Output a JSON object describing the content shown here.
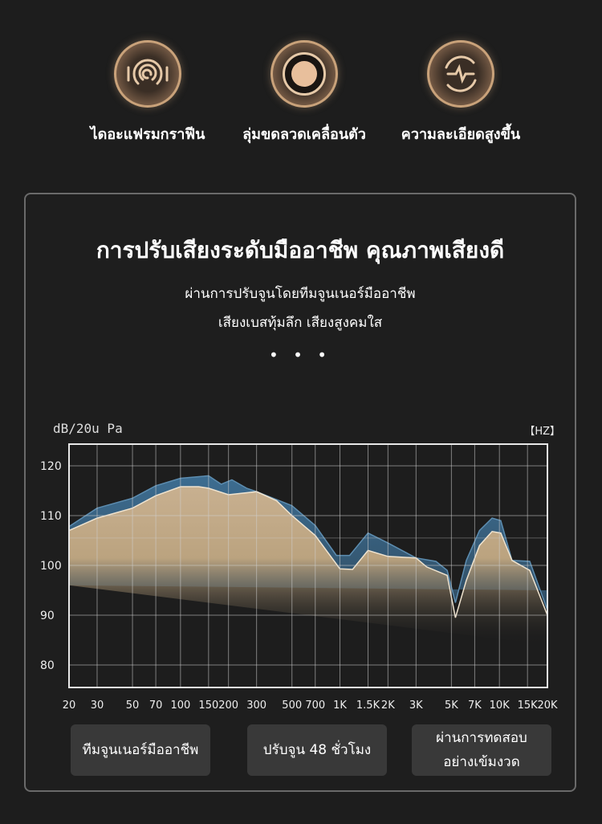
{
  "features": [
    {
      "icon": "graphene-diaphragm-icon",
      "label": "ไดอะแฟรมกราฟีน"
    },
    {
      "icon": "moving-coil-icon",
      "label": "ลุ่มขดลวดเคลื่อนตัว"
    },
    {
      "icon": "high-resolution-icon",
      "label": "ความละเอียดสูงขึ้น"
    }
  ],
  "panel": {
    "title": "การปรับเสียงระดับมืออาชีพ คุณภาพเสียงดี",
    "subtitle1": "ผ่านการปรับจูนโดยทีมจูนเนอร์มืออาชีพ",
    "subtitle2": "เสียงเบสทุ้มลึก เสียงสูงคมใส",
    "dots": "• • •",
    "buttons": [
      "ทีมจูนเนอร์มืออาชีพ",
      "ปรับจูน 48 ชั่วโมง",
      "ผ่านการทดสอบ",
      "อย่างเข้มงวด"
    ]
  },
  "chart_data": {
    "type": "area",
    "ylabel": "dB/20u Pa",
    "xlabel": "【HZ】",
    "xscale": "log",
    "xlim": [
      20,
      20000
    ],
    "ylim": [
      75,
      124
    ],
    "grid": true,
    "yticks": [
      120,
      110,
      100,
      90,
      80
    ],
    "xticks": [
      {
        "v": 20,
        "l": "20"
      },
      {
        "v": 30,
        "l": "30"
      },
      {
        "v": 50,
        "l": "50"
      },
      {
        "v": 70,
        "l": "70"
      },
      {
        "v": 100,
        "l": "100"
      },
      {
        "v": 150,
        "l": "150"
      },
      {
        "v": 200,
        "l": "200"
      },
      {
        "v": 300,
        "l": "300"
      },
      {
        "v": 500,
        "l": "500"
      },
      {
        "v": 700,
        "l": "700"
      },
      {
        "v": 1000,
        "l": "1K"
      },
      {
        "v": 1500,
        "l": "1.5K"
      },
      {
        "v": 2000,
        "l": "2K"
      },
      {
        "v": 3000,
        "l": "3K"
      },
      {
        "v": 5000,
        "l": "5K"
      },
      {
        "v": 7000,
        "l": "7K"
      },
      {
        "v": 10000,
        "l": "10K"
      },
      {
        "v": 15000,
        "l": "15K"
      },
      {
        "v": 20000,
        "l": "20K"
      }
    ],
    "series": [
      {
        "color": "#3d6d91",
        "points": [
          [
            20,
            107.8
          ],
          [
            30,
            111.5
          ],
          [
            50,
            113.5
          ],
          [
            70,
            116
          ],
          [
            100,
            117.5
          ],
          [
            150,
            118
          ],
          [
            180,
            116.3
          ],
          [
            210,
            117.2
          ],
          [
            260,
            115.5
          ],
          [
            300,
            114.8
          ],
          [
            500,
            112
          ],
          [
            700,
            108
          ],
          [
            950,
            102
          ],
          [
            1150,
            102
          ],
          [
            1500,
            106.5
          ],
          [
            2000,
            104.5
          ],
          [
            3000,
            101.5
          ],
          [
            4000,
            100.8
          ],
          [
            4700,
            99
          ],
          [
            5300,
            92.5
          ],
          [
            6200,
            101
          ],
          [
            7500,
            107
          ],
          [
            9000,
            109.5
          ],
          [
            10200,
            109
          ],
          [
            12000,
            101
          ],
          [
            15500,
            100.8
          ],
          [
            20000,
            91
          ]
        ]
      },
      {
        "color": "#c8b090",
        "points": [
          [
            20,
            107
          ],
          [
            30,
            109.5
          ],
          [
            50,
            111.5
          ],
          [
            70,
            114
          ],
          [
            100,
            115.8
          ],
          [
            130,
            115.8
          ],
          [
            150,
            115.5
          ],
          [
            200,
            114.2
          ],
          [
            300,
            114.8
          ],
          [
            400,
            113
          ],
          [
            500,
            110
          ],
          [
            700,
            106
          ],
          [
            1000,
            99.3
          ],
          [
            1200,
            99.2
          ],
          [
            1500,
            103
          ],
          [
            2000,
            101.8
          ],
          [
            3000,
            101.5
          ],
          [
            3500,
            99.7
          ],
          [
            4700,
            98
          ],
          [
            5300,
            89.5
          ],
          [
            6200,
            97
          ],
          [
            7500,
            104
          ],
          [
            9000,
            106.8
          ],
          [
            10200,
            106.5
          ],
          [
            12000,
            101
          ],
          [
            15500,
            99
          ],
          [
            20000,
            90
          ]
        ]
      }
    ]
  }
}
